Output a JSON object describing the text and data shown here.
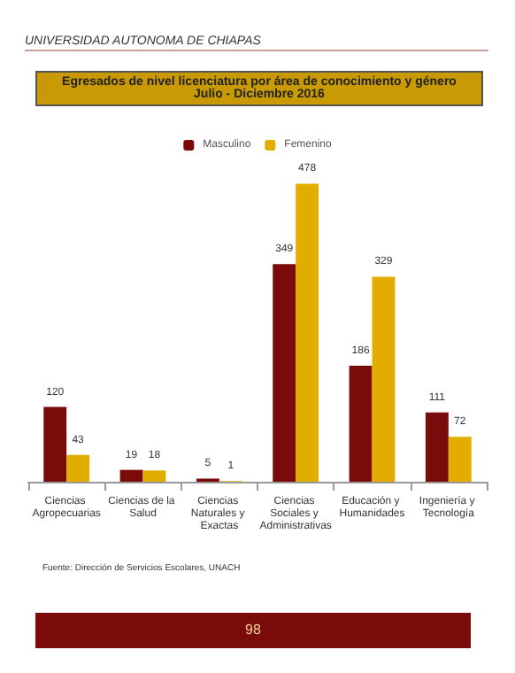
{
  "chart_data": {
    "type": "bar",
    "title": "Egresados de nivel licenciatura por área de conocimiento y género",
    "subtitle": "Julio - Diciembre 2016",
    "categories": [
      "Ciencias Agropecuarias",
      "Ciencias de la Salud",
      "Ciencias Naturales y Exactas",
      "Ciencias Sociales y Administrativas",
      "Educación y Humanidades",
      "Ingeniería y Tecnología"
    ],
    "series": [
      {
        "name": "Masculino",
        "color": "#7b0a0a",
        "values": [
          120,
          19,
          5,
          349,
          186,
          111
        ]
      },
      {
        "name": "Femenino",
        "color": "#e3ad00",
        "values": [
          43,
          18,
          1,
          478,
          329,
          72
        ]
      }
    ],
    "data_labels": true,
    "legend": "top",
    "annotations": [
      "UNIVERSIDAD AUTONOMA DE CHIAPAS",
      "Fuente: Dirección de Servicios Escolares, UNACH",
      "98"
    ]
  }
}
